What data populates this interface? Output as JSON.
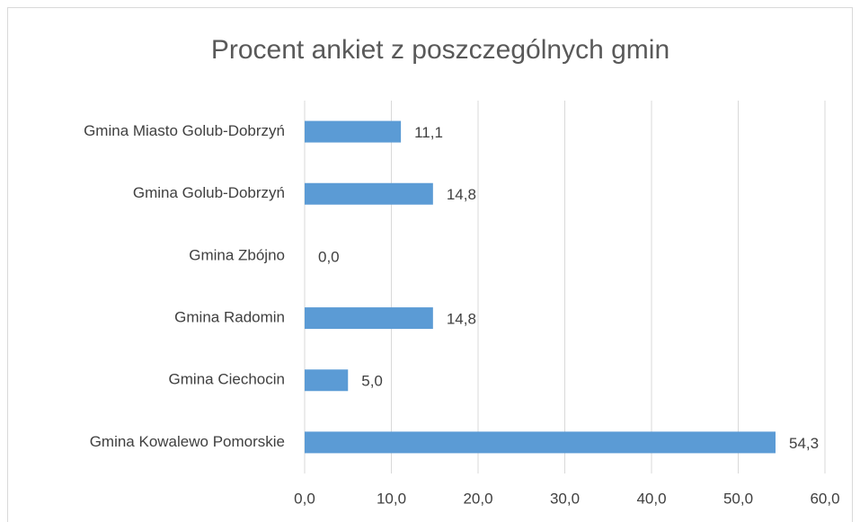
{
  "chart_data": {
    "type": "hbar",
    "title": "Procent ankiet z poszczególnych gmin",
    "categories": [
      "Gmina Miasto Golub-Dobrzyń",
      "Gmina Golub-Dobrzyń",
      "Gmina Zbójno",
      "Gmina Radomin",
      "Gmina Ciechocin",
      "Gmina Kowalewo Pomorskie"
    ],
    "values": [
      11.1,
      14.8,
      0,
      14.8,
      5,
      54.3
    ],
    "value_labels": [
      "11,1",
      "14,8",
      "0,0",
      "14,8",
      "5,0",
      "54,3"
    ],
    "color": "#5b9bd5",
    "xlim": [
      0,
      60
    ],
    "xticks": [
      {
        "value": 0,
        "label": "0,0"
      },
      {
        "value": 10,
        "label": "10,0"
      },
      {
        "value": 20,
        "label": "20,0"
      },
      {
        "value": 30,
        "label": "30,0"
      },
      {
        "value": 40,
        "label": "40,0"
      },
      {
        "value": 50,
        "label": "50,0"
      },
      {
        "value": 60,
        "label": "60,0"
      }
    ],
    "grid": true
  }
}
